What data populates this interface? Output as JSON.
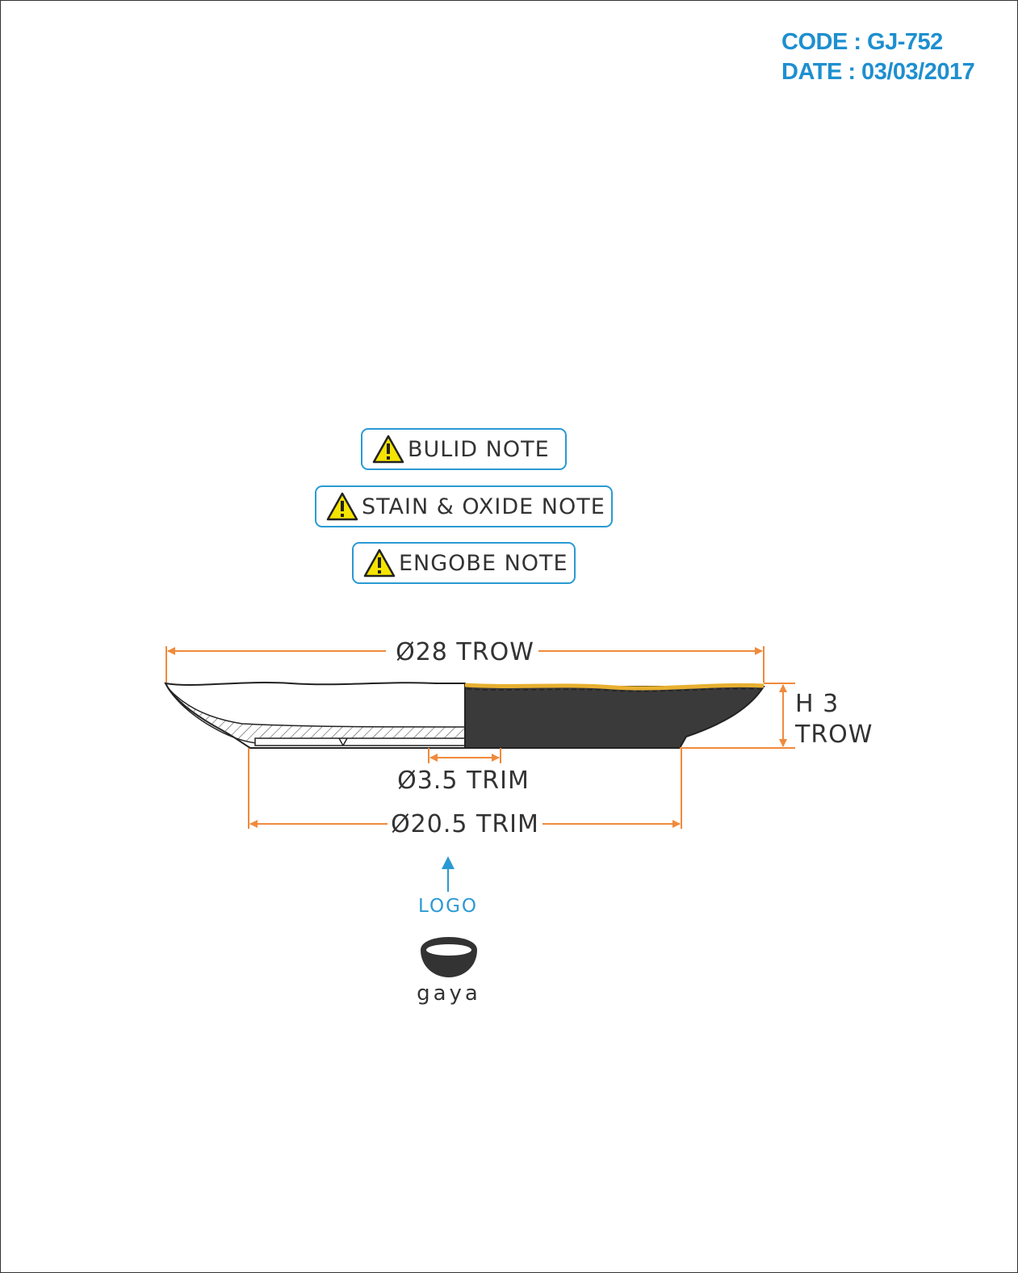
{
  "header": {
    "code": "CODE : GJ-752",
    "date": "DATE : 03/03/2017"
  },
  "notes": [
    {
      "label": "BULID NOTE",
      "icon": "warning-icon"
    },
    {
      "label": "STAIN & OXIDE NOTE",
      "icon": "warning-icon"
    },
    {
      "label": "ENGOBE NOTE",
      "icon": "warning-icon"
    }
  ],
  "dimensions": {
    "diameter_top": "Ø28 TROW",
    "height_line1": "H 3",
    "height_line2": "TROW",
    "diameter_inner": "Ø3.5 TRIM",
    "diameter_base": "Ø20.5 TRIM"
  },
  "logo": {
    "label": "LOGO",
    "brand": "gaya"
  },
  "colors": {
    "accent": "#1e8fcf",
    "dimension": "#f08a3c",
    "glaze": "#3a3a3a",
    "gold_rim": "#e8b030",
    "warning_fill": "#f5e400"
  }
}
